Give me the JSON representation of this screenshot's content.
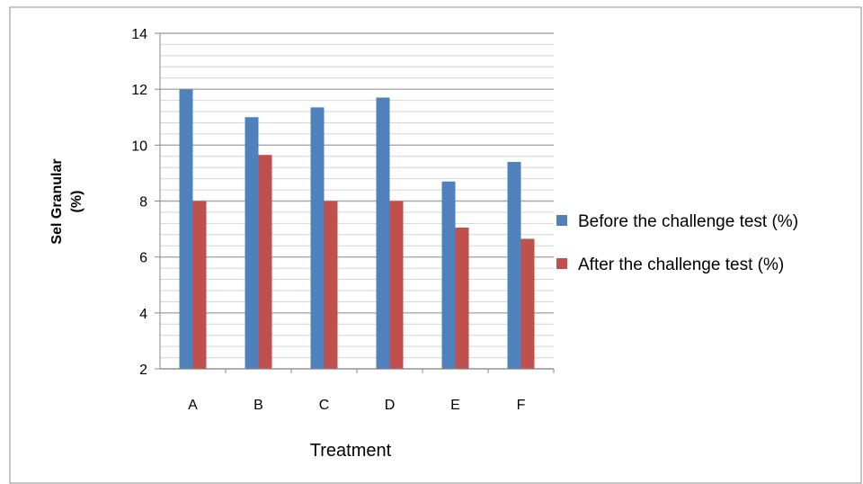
{
  "chart_data": {
    "type": "bar",
    "title": "",
    "xlabel": "Treatment",
    "ylabel": [
      "Sel Granular",
      "(%)"
    ],
    "categories": [
      "A",
      "B",
      "C",
      "D",
      "E",
      "F"
    ],
    "ylim": [
      2,
      14
    ],
    "yticks": [
      "2",
      "4",
      "6",
      "8",
      "10",
      "12",
      "14"
    ],
    "grid": true,
    "legend_position": "right",
    "series": [
      {
        "name": "Before the challenge test (%)",
        "color": "#4F81BD",
        "values": [
          12.0,
          11.0,
          11.35,
          11.7,
          8.7,
          9.4
        ]
      },
      {
        "name": "After the challenge test (%)",
        "color": "#C0504D",
        "values": [
          8.0,
          9.65,
          8.0,
          8.0,
          7.05,
          6.65
        ]
      }
    ]
  }
}
